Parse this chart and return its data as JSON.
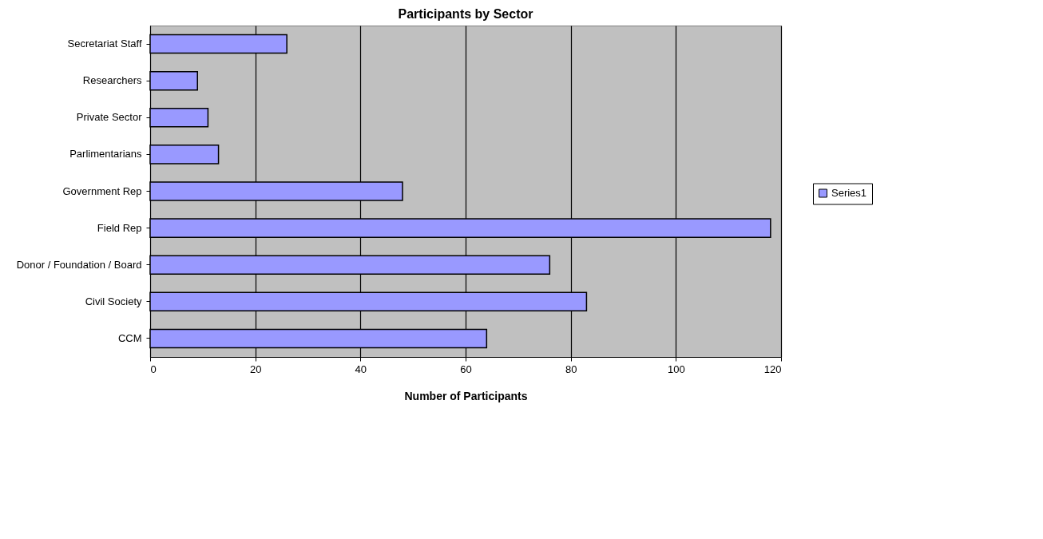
{
  "chart_data": {
    "type": "bar",
    "orientation": "horizontal",
    "title": "Participants by Sector",
    "xlabel": "Number of Participants",
    "categories": [
      "Secretariat Staff",
      "Researchers",
      "Private Sector",
      "Parlimentarians",
      "Government Rep",
      "Field Rep",
      "Donor / Foundation / Board",
      "Civil Society",
      "CCM"
    ],
    "series": [
      {
        "name": "Series1",
        "color": "#9999ff",
        "values": [
          26,
          9,
          11,
          13,
          48,
          118,
          76,
          83,
          64
        ]
      }
    ],
    "xlim": [
      0,
      120
    ],
    "xticks": [
      0,
      20,
      40,
      60,
      80,
      100,
      120
    ],
    "grid": "x",
    "legend": "right"
  }
}
